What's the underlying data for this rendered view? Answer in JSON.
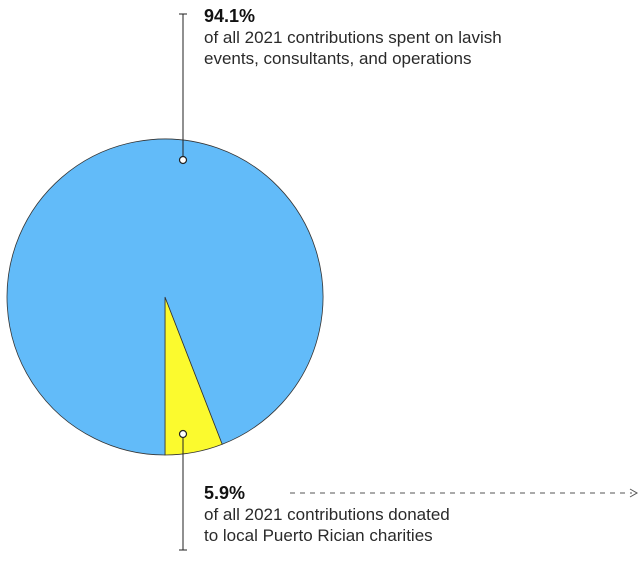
{
  "chart_data": {
    "type": "pie",
    "slices": [
      {
        "value": 94.1,
        "color": "#62bbf9"
      },
      {
        "value": 5.9,
        "color": "#fbfa2e"
      }
    ],
    "labels": [
      {
        "value_text": "94.1%",
        "text": "of all 2021 contributions spent on lavish events, consultants, and operations"
      },
      {
        "value_text": "5.9%",
        "text": "of all 2021 contributions donated to local Puerto Rician charities"
      }
    ]
  }
}
